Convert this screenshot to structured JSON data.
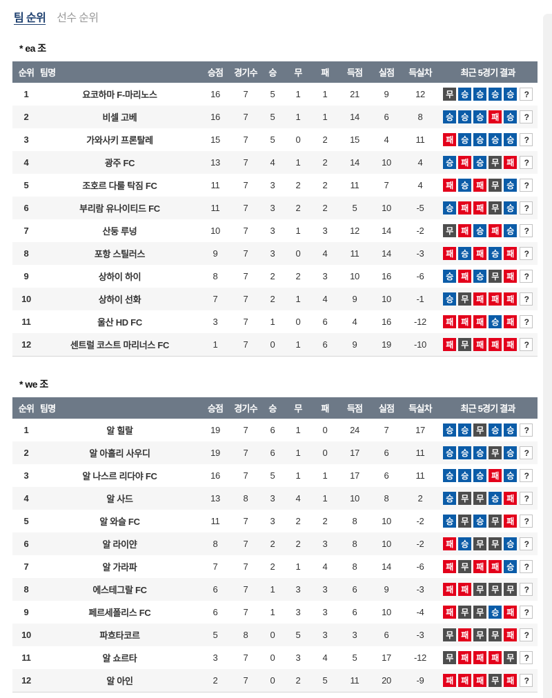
{
  "tabs": [
    {
      "label": "팀 순위",
      "active": true
    },
    {
      "label": "선수 순위",
      "active": false
    }
  ],
  "columns": [
    "순위",
    "팀명",
    "승점",
    "경기수",
    "승",
    "무",
    "패",
    "득점",
    "실점",
    "득실차",
    "최근 5경기 결과"
  ],
  "result_labels": {
    "W": "승",
    "D": "무",
    "L": "패",
    "Q": "?"
  },
  "colors": {
    "active_tab": "#1c3e6e",
    "header_bg": "#6d7987",
    "win": "#0b5ca8",
    "draw": "#4d4d4d",
    "loss": "#e3001b"
  },
  "groups": [
    {
      "title": "* ea 조",
      "rows": [
        {
          "rank": 1,
          "team": "요코하마 F-마리노스",
          "points": 16,
          "played": 7,
          "win": 5,
          "draw": 1,
          "loss": 1,
          "gf": 21,
          "ga": 9,
          "gd": 12,
          "recent": "DWWWWQ"
        },
        {
          "rank": 2,
          "team": "비셀 고베",
          "points": 16,
          "played": 7,
          "win": 5,
          "draw": 1,
          "loss": 1,
          "gf": 14,
          "ga": 6,
          "gd": 8,
          "recent": "WWWLWQ"
        },
        {
          "rank": 3,
          "team": "가와사키 프론탈레",
          "points": 15,
          "played": 7,
          "win": 5,
          "draw": 0,
          "loss": 2,
          "gf": 15,
          "ga": 4,
          "gd": 11,
          "recent": "LWWWWQ"
        },
        {
          "rank": 4,
          "team": "광주 FC",
          "points": 13,
          "played": 7,
          "win": 4,
          "draw": 1,
          "loss": 2,
          "gf": 14,
          "ga": 10,
          "gd": 4,
          "recent": "WLWDLQ"
        },
        {
          "rank": 5,
          "team": "조호르 다룰 탁짐 FC",
          "points": 11,
          "played": 7,
          "win": 3,
          "draw": 2,
          "loss": 2,
          "gf": 11,
          "ga": 7,
          "gd": 4,
          "recent": "LWLDWQ"
        },
        {
          "rank": 6,
          "team": "부리람 유나이티드 FC",
          "points": 11,
          "played": 7,
          "win": 3,
          "draw": 2,
          "loss": 2,
          "gf": 5,
          "ga": 10,
          "gd": -5,
          "recent": "WLLDWQ"
        },
        {
          "rank": 7,
          "team": "산둥 루넝",
          "points": 10,
          "played": 7,
          "win": 3,
          "draw": 1,
          "loss": 3,
          "gf": 12,
          "ga": 14,
          "gd": -2,
          "recent": "DLWLWQ"
        },
        {
          "rank": 8,
          "team": "포항 스틸러스",
          "points": 9,
          "played": 7,
          "win": 3,
          "draw": 0,
          "loss": 4,
          "gf": 11,
          "ga": 14,
          "gd": -3,
          "recent": "LWLWLQ"
        },
        {
          "rank": 9,
          "team": "상하이 하이",
          "points": 8,
          "played": 7,
          "win": 2,
          "draw": 2,
          "loss": 3,
          "gf": 10,
          "ga": 16,
          "gd": -6,
          "recent": "WLWDLQ"
        },
        {
          "rank": 10,
          "team": "상하이 선화",
          "points": 7,
          "played": 7,
          "win": 2,
          "draw": 1,
          "loss": 4,
          "gf": 9,
          "ga": 10,
          "gd": -1,
          "recent": "WDLLLQ"
        },
        {
          "rank": 11,
          "team": "울산 HD FC",
          "points": 3,
          "played": 7,
          "win": 1,
          "draw": 0,
          "loss": 6,
          "gf": 4,
          "ga": 16,
          "gd": -12,
          "recent": "LLLWLQ"
        },
        {
          "rank": 12,
          "team": "센트럴 코스트 마리너스 FC",
          "points": 1,
          "played": 7,
          "win": 0,
          "draw": 1,
          "loss": 6,
          "gf": 9,
          "ga": 19,
          "gd": -10,
          "recent": "LDLLLQ"
        }
      ]
    },
    {
      "title": "* we 조",
      "rows": [
        {
          "rank": 1,
          "team": "알 힐랄",
          "points": 19,
          "played": 7,
          "win": 6,
          "draw": 1,
          "loss": 0,
          "gf": 24,
          "ga": 7,
          "gd": 17,
          "recent": "WWDWWQ"
        },
        {
          "rank": 2,
          "team": "알 아흘리 사우디",
          "points": 19,
          "played": 7,
          "win": 6,
          "draw": 1,
          "loss": 0,
          "gf": 17,
          "ga": 6,
          "gd": 11,
          "recent": "WWWDWQ"
        },
        {
          "rank": 3,
          "team": "알 나스르 리다야 FC",
          "points": 16,
          "played": 7,
          "win": 5,
          "draw": 1,
          "loss": 1,
          "gf": 17,
          "ga": 6,
          "gd": 11,
          "recent": "WWWLWQ"
        },
        {
          "rank": 4,
          "team": "알 사드",
          "points": 13,
          "played": 8,
          "win": 3,
          "draw": 4,
          "loss": 1,
          "gf": 10,
          "ga": 8,
          "gd": 2,
          "recent": "WDDWLQ"
        },
        {
          "rank": 5,
          "team": "알 와슬 FC",
          "points": 11,
          "played": 7,
          "win": 3,
          "draw": 2,
          "loss": 2,
          "gf": 8,
          "ga": 10,
          "gd": -2,
          "recent": "WDWDLQ"
        },
        {
          "rank": 6,
          "team": "알 라이얀",
          "points": 8,
          "played": 7,
          "win": 2,
          "draw": 2,
          "loss": 3,
          "gf": 8,
          "ga": 10,
          "gd": -2,
          "recent": "LWDDWQ"
        },
        {
          "rank": 7,
          "team": "알 가라파",
          "points": 7,
          "played": 7,
          "win": 2,
          "draw": 1,
          "loss": 4,
          "gf": 8,
          "ga": 14,
          "gd": -6,
          "recent": "LDLLWQ"
        },
        {
          "rank": 8,
          "team": "에스테그랄 FC",
          "points": 6,
          "played": 7,
          "win": 1,
          "draw": 3,
          "loss": 3,
          "gf": 6,
          "ga": 9,
          "gd": -3,
          "recent": "LLDDDQ"
        },
        {
          "rank": 9,
          "team": "페르세폴리스 FC",
          "points": 6,
          "played": 7,
          "win": 1,
          "draw": 3,
          "loss": 3,
          "gf": 6,
          "ga": 10,
          "gd": -4,
          "recent": "LDDWLQ"
        },
        {
          "rank": 10,
          "team": "파흐타코르",
          "points": 5,
          "played": 8,
          "win": 0,
          "draw": 5,
          "loss": 3,
          "gf": 3,
          "ga": 6,
          "gd": -3,
          "recent": "DLDDLQ"
        },
        {
          "rank": 11,
          "team": "알 쇼르타",
          "points": 3,
          "played": 7,
          "win": 0,
          "draw": 3,
          "loss": 4,
          "gf": 5,
          "ga": 17,
          "gd": -12,
          "recent": "DLLLDQ"
        },
        {
          "rank": 12,
          "team": "알 아인",
          "points": 2,
          "played": 7,
          "win": 0,
          "draw": 2,
          "loss": 5,
          "gf": 11,
          "ga": 20,
          "gd": -9,
          "recent": "LLLDLQ"
        }
      ]
    }
  ]
}
